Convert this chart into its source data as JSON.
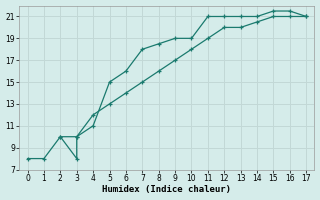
{
  "xlabel": "Humidex (Indice chaleur)",
  "bg_color": "#d5ecea",
  "grid_color": "#c2d8d6",
  "line_color": "#1a7a6e",
  "line1_x": [
    0,
    1,
    2,
    3,
    3,
    4,
    5,
    6,
    7,
    8,
    9,
    10,
    11,
    12,
    13,
    14,
    15,
    16,
    17
  ],
  "line1_y": [
    8,
    8,
    10,
    8,
    10,
    11,
    15,
    16,
    18,
    18.5,
    19,
    19,
    21,
    21,
    21,
    21,
    21.5,
    21.5,
    21
  ],
  "line2_x": [
    2,
    3,
    4,
    5,
    6,
    7,
    8,
    9,
    10,
    11,
    12,
    13,
    14,
    15,
    16,
    17
  ],
  "line2_y": [
    10,
    10,
    12,
    13,
    14,
    15,
    16,
    17,
    18,
    19,
    20,
    20,
    20.5,
    21,
    21,
    21
  ],
  "xlim": [
    -0.5,
    17.5
  ],
  "ylim": [
    7,
    22
  ],
  "xticks": [
    0,
    1,
    2,
    3,
    4,
    5,
    6,
    7,
    8,
    9,
    10,
    11,
    12,
    13,
    14,
    15,
    16,
    17
  ],
  "yticks": [
    7,
    9,
    11,
    13,
    15,
    17,
    19,
    21
  ]
}
